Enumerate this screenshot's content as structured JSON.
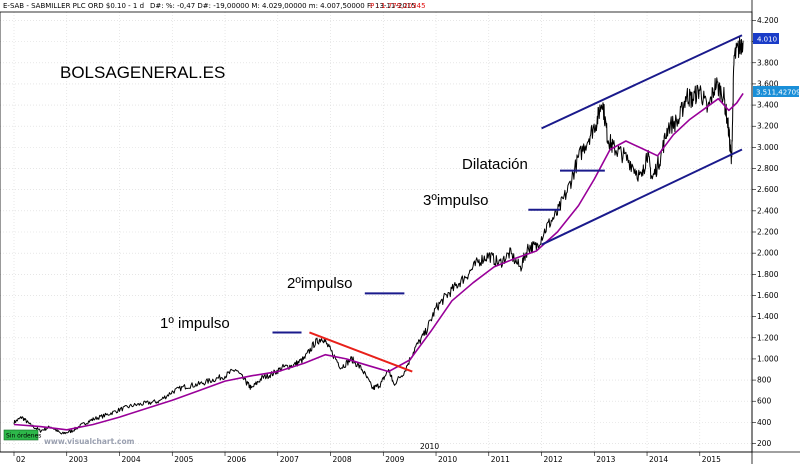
{
  "header": {
    "instrument": "E-SAB - SABMILLER PLC ORD $0.10 - 1 d",
    "stats": "D#: %: -0,47  D#: -19,00000  M: 4.029,00000  m: 4.007,50000  F: 13-11-2015",
    "p_label": "P : 1.779,20345"
  },
  "watermark": "BOLSAGENERAL.ES",
  "footer_brand": "www.visualchart.com",
  "badge": "Sin órdenes",
  "price_tags": {
    "last": "4.010",
    "ma": "3.511,42709"
  },
  "annotations": {
    "impulse1": "1º impulso",
    "impulse2": "2ºimpulso",
    "impulse3": "3ºimpulso",
    "dilation": "Dilatación"
  },
  "colors": {
    "price": "#000000",
    "ma": "#990099",
    "channel": "#1a1a8c",
    "resistance": "#e8201a",
    "last_tag": "#1a3cc8",
    "ma_tag": "#1a8fd8",
    "badge": "#2db84a"
  },
  "chart_data": {
    "type": "line",
    "title": "",
    "xlabel": "",
    "ylabel": "",
    "x_ticks": [
      "02",
      "2003",
      "2004",
      "2005",
      "2006",
      "2007",
      "2008",
      "2009",
      "2010",
      "2011",
      "2012",
      "2013",
      "2014",
      "2015"
    ],
    "inner_label": "2010",
    "y_ticks": [
      200,
      400,
      600,
      800,
      1000,
      1200,
      1400,
      1600,
      1800,
      2000,
      2200,
      2400,
      2600,
      2800,
      3000,
      3200,
      3400,
      3600,
      3800,
      4000,
      4200
    ],
    "ylim": [
      120,
      4280
    ],
    "xlim": [
      2002.0,
      2015.8
    ],
    "series": [
      {
        "name": "",
        "role": "price",
        "x": [
          2002.0,
          2002.15,
          2002.3,
          2002.5,
          2002.7,
          2002.9,
          2003.1,
          2003.3,
          2003.5,
          2003.75,
          2004.0,
          2004.25,
          2004.5,
          2004.75,
          2005.0,
          2005.25,
          2005.5,
          2005.75,
          2006.0,
          2006.2,
          2006.4,
          2006.5,
          2006.7,
          2006.9,
          2007.1,
          2007.3,
          2007.5,
          2007.7,
          2007.85,
          2008.0,
          2008.2,
          2008.4,
          2008.6,
          2008.8,
          2008.95,
          2009.1,
          2009.2,
          2009.4,
          2009.6,
          2009.8,
          2010.0,
          2010.2,
          2010.4,
          2010.6,
          2010.8,
          2011.0,
          2011.2,
          2011.4,
          2011.6,
          2011.75,
          2011.9,
          2012.1,
          2012.3,
          2012.5,
          2012.7,
          2012.9,
          2013.05,
          2013.15,
          2013.25,
          2013.35,
          2013.5,
          2013.7,
          2013.9,
          2014.0,
          2014.1,
          2014.25,
          2014.4,
          2014.6,
          2014.75,
          2014.85,
          2015.0,
          2015.15,
          2015.3,
          2015.45,
          2015.55,
          2015.6,
          2015.65,
          2015.75,
          2015.82
        ],
        "values": [
          400,
          450,
          380,
          320,
          360,
          290,
          320,
          380,
          430,
          470,
          520,
          560,
          580,
          600,
          690,
          740,
          760,
          800,
          840,
          900,
          780,
          720,
          820,
          860,
          920,
          940,
          1000,
          1150,
          1200,
          1080,
          920,
          1000,
          900,
          720,
          760,
          900,
          760,
          880,
          1100,
          1250,
          1480,
          1600,
          1700,
          1800,
          1920,
          1980,
          1900,
          2000,
          1860,
          2060,
          2060,
          2250,
          2380,
          2600,
          2900,
          3100,
          3250,
          3450,
          3100,
          3000,
          2950,
          2850,
          2700,
          2950,
          2700,
          2900,
          3200,
          3250,
          3500,
          3450,
          3550,
          3350,
          3600,
          3500,
          3150,
          2850,
          3850,
          3950,
          4010
        ]
      },
      {
        "name": "",
        "role": "moving-average",
        "x": [
          2002.0,
          2002.5,
          2003.0,
          2003.5,
          2004.0,
          2004.5,
          2005.0,
          2005.5,
          2006.0,
          2006.5,
          2007.0,
          2007.5,
          2007.9,
          2008.3,
          2008.7,
          2009.1,
          2009.5,
          2009.9,
          2010.3,
          2010.7,
          2011.1,
          2011.5,
          2011.9,
          2012.3,
          2012.7,
          2013.0,
          2013.3,
          2013.6,
          2013.9,
          2014.2,
          2014.5,
          2014.8,
          2015.1,
          2015.35,
          2015.55,
          2015.7,
          2015.82
        ],
        "values": [
          380,
          360,
          330,
          380,
          450,
          530,
          610,
          700,
          790,
          840,
          880,
          960,
          1040,
          1000,
          940,
          880,
          990,
          1260,
          1550,
          1720,
          1870,
          1950,
          2020,
          2200,
          2450,
          2700,
          2980,
          3060,
          2990,
          2920,
          3120,
          3260,
          3370,
          3460,
          3350,
          3420,
          3510
        ]
      },
      {
        "name": "",
        "role": "channel-upper",
        "x": [
          2012.0,
          2015.8
        ],
        "values": [
          3180,
          4060
        ]
      },
      {
        "name": "",
        "role": "channel-lower",
        "x": [
          2012.0,
          2015.8
        ],
        "values": [
          2080,
          2980
        ]
      },
      {
        "name": "",
        "role": "resistance",
        "x": [
          2007.6,
          2009.55
        ],
        "values": [
          1250,
          880
        ]
      }
    ],
    "impulse_markers": [
      {
        "x": [
          2006.9,
          2007.45
        ],
        "y": 1250
      },
      {
        "x": [
          2008.65,
          2009.4
        ],
        "y": 1620
      },
      {
        "x": [
          2011.75,
          2012.35
        ],
        "y": 2410
      },
      {
        "x": [
          2012.35,
          2013.2
        ],
        "y": 2780
      }
    ],
    "grid": true,
    "legend": "none"
  }
}
